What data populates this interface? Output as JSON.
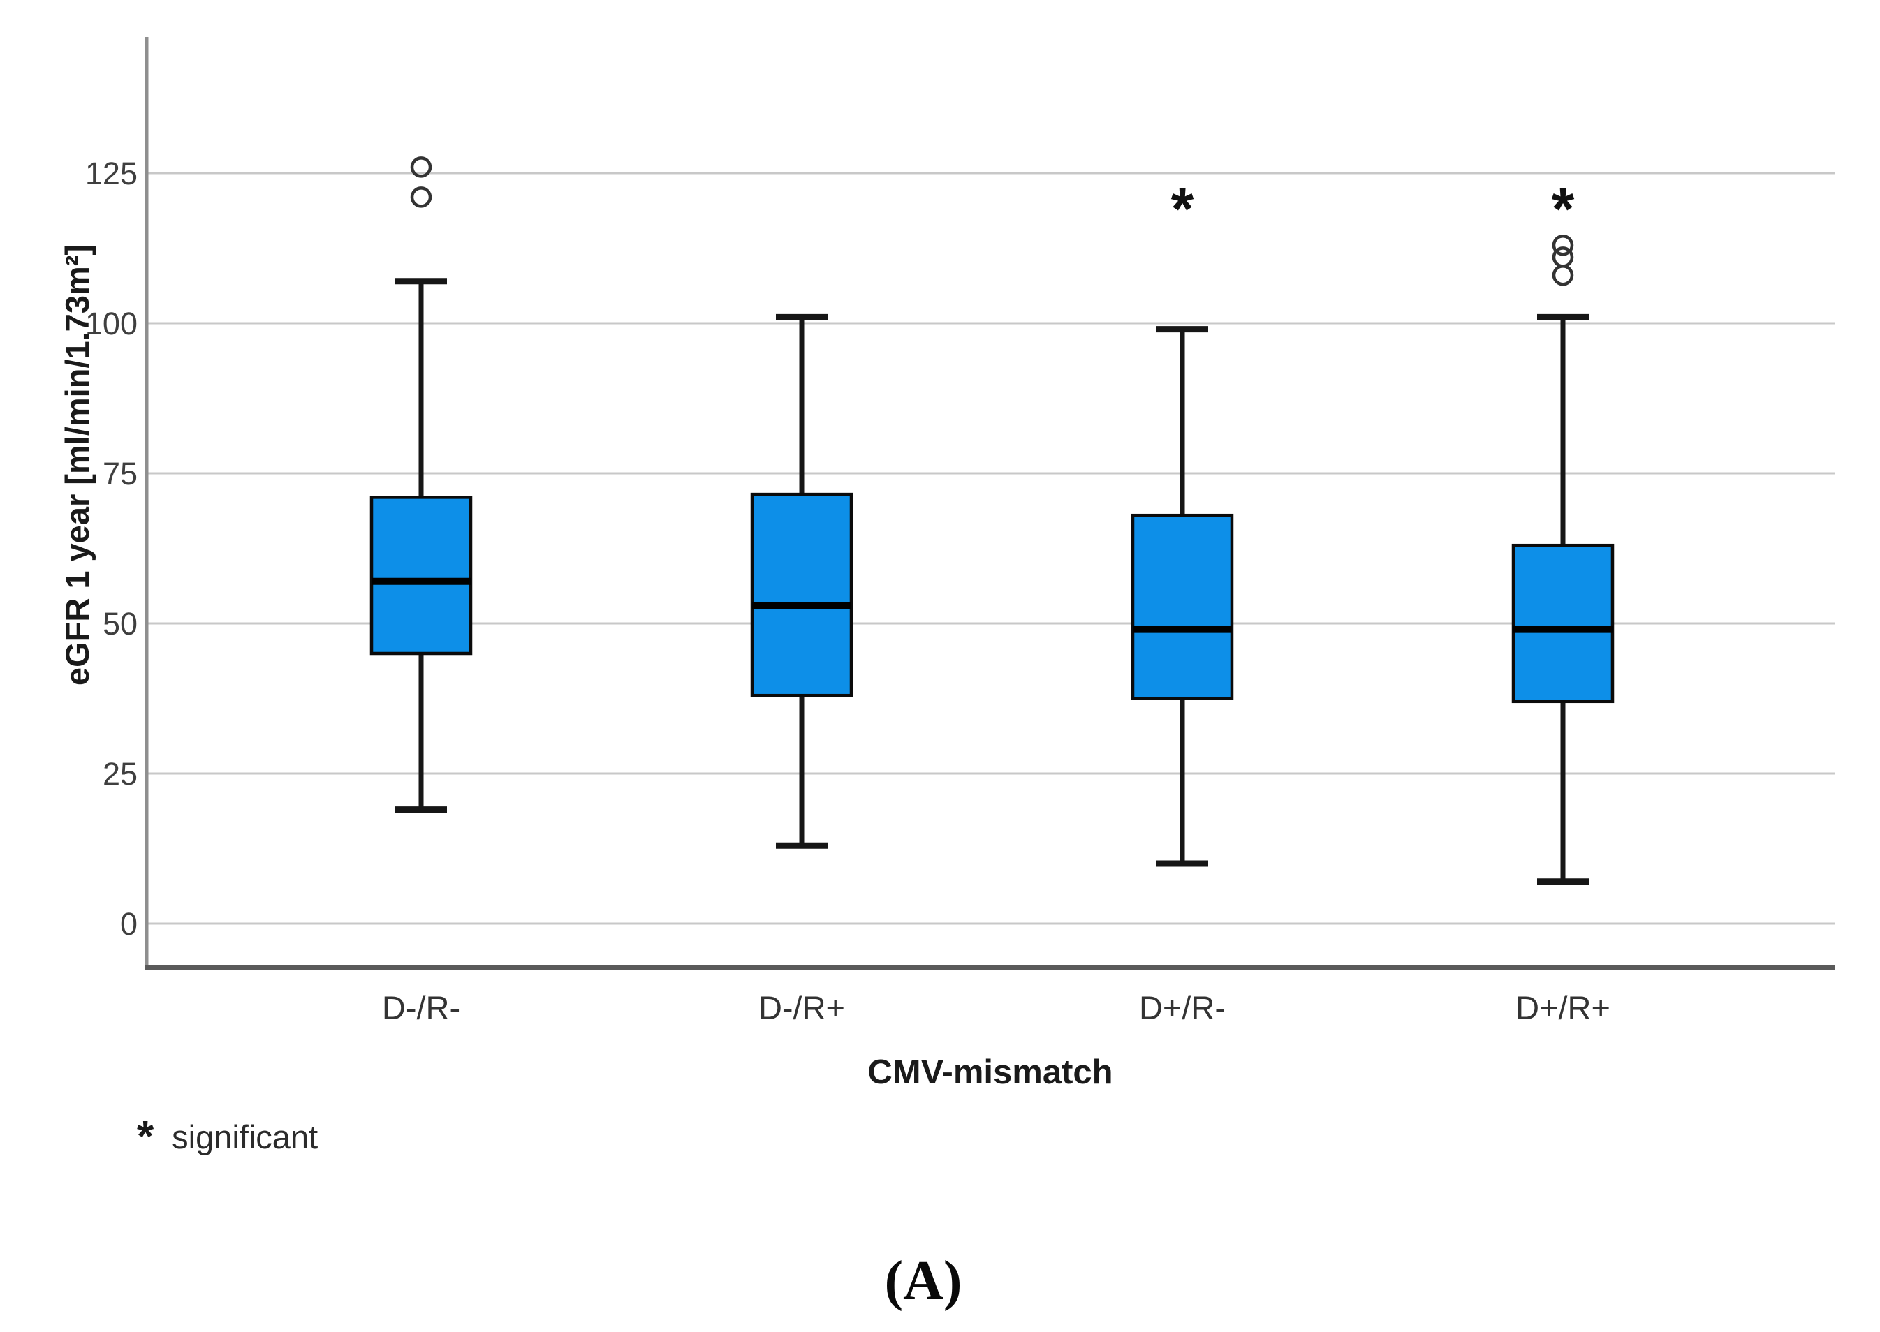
{
  "figure": {
    "background": "#ffffff",
    "caption": "(A)",
    "footnote": {
      "marker": "*",
      "text": "significant"
    }
  },
  "chart_data": {
    "type": "boxplot",
    "title": "",
    "xlabel": "CMV-mismatch",
    "ylabel": "eGFR 1 year [ml/min/1.73m²]",
    "ylim": [
      -8,
      147
    ],
    "yticks": [
      0,
      25,
      50,
      75,
      100,
      125
    ],
    "grid": "horizontal",
    "legend": "none",
    "categories": [
      "D-/R-",
      "D-/R+",
      "D+/R-",
      "D+/R+"
    ],
    "series": [
      {
        "category": "D-/R-",
        "whisker_low": 19,
        "q1": 45,
        "median": 57,
        "q3": 71,
        "whisker_high": 107,
        "outliers": [
          121,
          126
        ],
        "significant": false
      },
      {
        "category": "D-/R+",
        "whisker_low": 13,
        "q1": 38,
        "median": 53,
        "q3": 71.5,
        "whisker_high": 101,
        "outliers": [],
        "significant": false
      },
      {
        "category": "D+/R-",
        "whisker_low": 10,
        "q1": 37.5,
        "median": 49,
        "q3": 68,
        "whisker_high": 99,
        "outliers": [],
        "significant": true
      },
      {
        "category": "D+/R+",
        "whisker_low": 7,
        "q1": 37,
        "median": 49,
        "q3": 63,
        "whisker_high": 101,
        "outliers": [
          108,
          111,
          113
        ],
        "significant": true
      }
    ],
    "significance_marker": {
      "symbol": "*",
      "y_value": 121.5,
      "applies_to": [
        "D+/R-",
        "D+/R+"
      ]
    },
    "colors": {
      "box_fill": "#0D8FE8",
      "box_border": "#0b0b0b",
      "median": "#000000",
      "whisker": "#161616",
      "outlier_stroke": "#333333",
      "gridline": "#c8c8c8",
      "axis_spine": "#8f8f8f",
      "axis_line_bottom": "#5a5a5a",
      "tick_label": "#3f3f3f",
      "category_label": "#333333",
      "axis_title": "#1a1a1a",
      "significance": "#111111"
    }
  }
}
